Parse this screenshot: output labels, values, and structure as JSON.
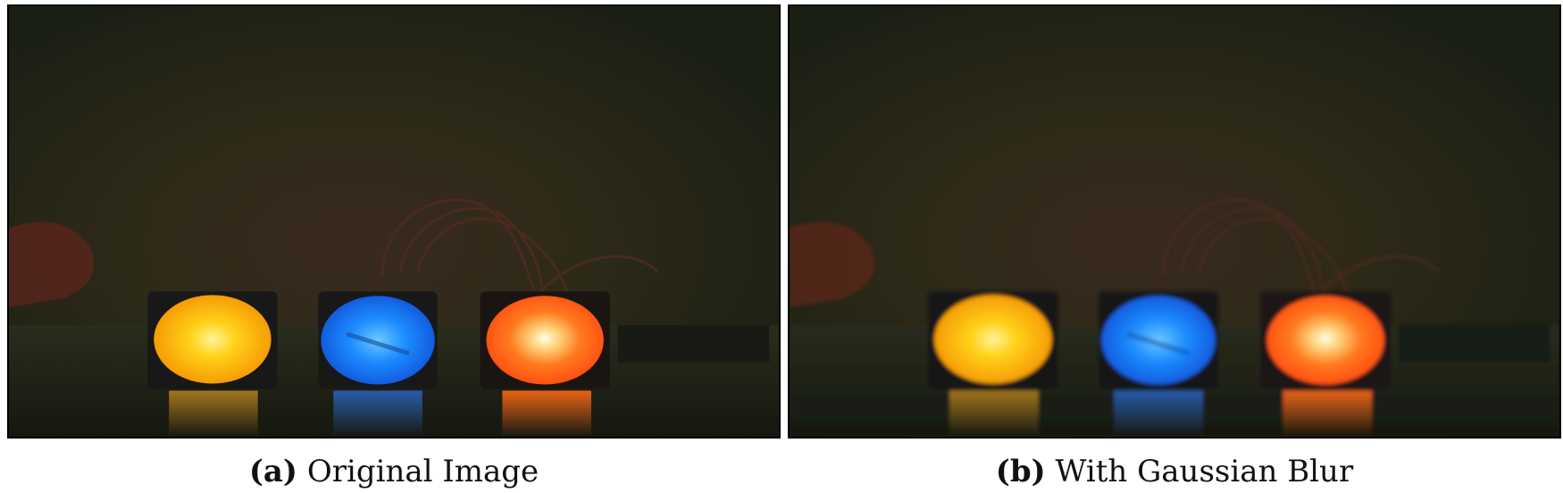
{
  "figure": {
    "panels": [
      {
        "tag": "(a)",
        "caption": "Original Image",
        "blurred": false
      },
      {
        "tag": "(b)",
        "caption": "With Gaussian Blur",
        "blurred": true
      }
    ],
    "scene": {
      "background_color": "#20230f",
      "lights": [
        {
          "name": "yellow-light",
          "color": "#ffb000",
          "core": "#fff176"
        },
        {
          "name": "blue-light",
          "color": "#1e7fff",
          "core": "#7fd0ff"
        },
        {
          "name": "orange-light",
          "color": "#ff6a10",
          "core": "#ffffe0"
        }
      ]
    }
  }
}
